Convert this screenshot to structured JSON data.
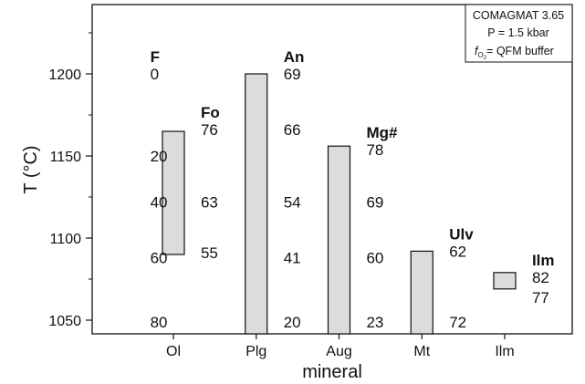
{
  "chart_data": {
    "type": "bar",
    "title": "",
    "xlabel": "mineral",
    "ylabel": "T (°C)",
    "ylim": [
      1040,
      1245
    ],
    "yticks": [
      1050,
      1100,
      1150,
      1200
    ],
    "categories": [
      "Ol",
      "Plg",
      "Aug",
      "Mt",
      "Ilm"
    ],
    "bars": [
      {
        "mineral": "Ol",
        "low": 1090,
        "high": 1165
      },
      {
        "mineral": "Plg",
        "low": 1040,
        "high": 1200
      },
      {
        "mineral": "Aug",
        "low": 1040,
        "high": 1156
      },
      {
        "mineral": "Mt",
        "low": 1040,
        "high": 1092
      },
      {
        "mineral": "Ilm",
        "low": 1069,
        "high": 1079
      }
    ],
    "annotations": [
      {
        "id": "F",
        "header": "F",
        "x": 0.72,
        "values": [
          {
            "text": "0",
            "y": 1200
          },
          {
            "text": "20",
            "y": 1150
          },
          {
            "text": "40",
            "y": 1122
          },
          {
            "text": "60",
            "y": 1088
          },
          {
            "text": "80",
            "y": 1049
          }
        ]
      },
      {
        "id": "Fo",
        "header": "Fo",
        "x": 1.33,
        "values": [
          {
            "text": "76",
            "y": 1166
          },
          {
            "text": "63",
            "y": 1122
          },
          {
            "text": "55",
            "y": 1091
          }
        ]
      },
      {
        "id": "An",
        "header": "An",
        "x": 2.33,
        "values": [
          {
            "text": "69",
            "y": 1200
          },
          {
            "text": "66",
            "y": 1166
          },
          {
            "text": "54",
            "y": 1122
          },
          {
            "text": "41",
            "y": 1088
          },
          {
            "text": "20",
            "y": 1049
          }
        ]
      },
      {
        "id": "Mg",
        "header": "Mg#",
        "x": 3.33,
        "values": [
          {
            "text": "78",
            "y": 1154
          },
          {
            "text": "69",
            "y": 1122
          },
          {
            "text": "60",
            "y": 1088
          },
          {
            "text": "23",
            "y": 1049
          }
        ]
      },
      {
        "id": "Ulv",
        "header": "Ulv",
        "x": 4.33,
        "values": [
          {
            "text": "62",
            "y": 1092
          },
          {
            "text": "72",
            "y": 1049
          }
        ]
      },
      {
        "id": "Ilm",
        "header": "Ilm",
        "x": 5.33,
        "values": [
          {
            "text": "82",
            "y": 1076
          },
          {
            "text": "77",
            "y": 1064
          }
        ]
      }
    ],
    "info_box": {
      "line1": "COMAGMAT 3.65",
      "line2": "P = 1.5 kbar",
      "line3_f": "f",
      "line3_sub": "O",
      "line3_subsub": "2",
      "line3_rest": "= QFM buffer"
    },
    "bar_fill": "#dcdcdc",
    "stroke_color": "#111111",
    "grid": false,
    "legend": "none"
  }
}
